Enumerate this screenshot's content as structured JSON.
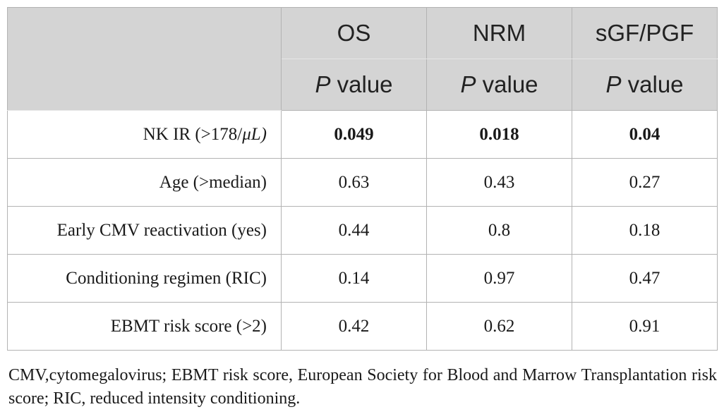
{
  "table": {
    "headers": [
      {
        "name": "OS",
        "sub_italic": "P",
        "sub_rest": " value"
      },
      {
        "name": "NRM",
        "sub_italic": "P",
        "sub_rest": " value"
      },
      {
        "name": "sGF/PGF",
        "sub_italic": "P",
        "sub_rest": " value"
      }
    ],
    "rows": [
      {
        "label": "NK IR (>178/",
        "label_italic": "μL)",
        "values": [
          "0.049",
          "0.018",
          "0.04"
        ],
        "bold": true
      },
      {
        "label": "Age (>median)",
        "label_italic": "",
        "values": [
          "0.63",
          "0.43",
          "0.27"
        ],
        "bold": false
      },
      {
        "label": "Early CMV reactivation (yes)",
        "label_italic": "",
        "values": [
          "0.44",
          "0.8",
          "0.18"
        ],
        "bold": false
      },
      {
        "label": "Conditioning regimen (RIC)",
        "label_italic": "",
        "values": [
          "0.14",
          "0.97",
          "0.47"
        ],
        "bold": false
      },
      {
        "label": "EBMT risk score (>2)",
        "label_italic": "",
        "values": [
          "0.42",
          "0.62",
          "0.91"
        ],
        "bold": false
      }
    ]
  },
  "footnote": "CMV,cytomegalovirus; EBMT risk score, European Society for Blood and Marrow Transplantation risk score; RIC, reduced intensity conditioning.",
  "colors": {
    "header_bg": "#d4d4d4",
    "border": "#b3b3b3"
  }
}
